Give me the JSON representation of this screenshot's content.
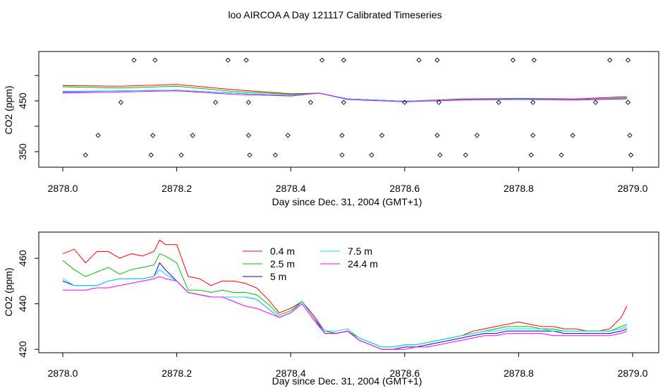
{
  "figure": {
    "title": "loo AIRCOA A  Day 121117  Calibrated Timeseries"
  },
  "chart_data": [
    {
      "type": "scatter",
      "title": "loo AIRCOA A  Day 121117  Calibrated Timeseries",
      "xlabel": "Day since Dec. 31, 2004 (GMT+1)",
      "ylabel": "CO2 (ppm)",
      "xlim": [
        2878.0,
        2879.0
      ],
      "xticks": [
        "2878.0",
        "2878.2",
        "2878.4",
        "2878.6",
        "2878.8",
        "2879.0"
      ],
      "yticks": [
        "350",
        "450"
      ],
      "ylim": [
        320,
        520
      ],
      "grid": false,
      "scatter_points": [
        {
          "x": 2878.125,
          "y": 505
        },
        {
          "x": 2878.162,
          "y": 505
        },
        {
          "x": 2878.29,
          "y": 505
        },
        {
          "x": 2878.322,
          "y": 505
        },
        {
          "x": 2878.455,
          "y": 505
        },
        {
          "x": 2878.493,
          "y": 505
        },
        {
          "x": 2878.625,
          "y": 505
        },
        {
          "x": 2878.657,
          "y": 505
        },
        {
          "x": 2878.79,
          "y": 505
        },
        {
          "x": 2878.827,
          "y": 505
        },
        {
          "x": 2878.96,
          "y": 505
        },
        {
          "x": 2878.992,
          "y": 505
        },
        {
          "x": 2878.102,
          "y": 432
        },
        {
          "x": 2878.268,
          "y": 432
        },
        {
          "x": 2878.326,
          "y": 432
        },
        {
          "x": 2878.435,
          "y": 432
        },
        {
          "x": 2878.493,
          "y": 432
        },
        {
          "x": 2878.6,
          "y": 432
        },
        {
          "x": 2878.66,
          "y": 432
        },
        {
          "x": 2878.765,
          "y": 432
        },
        {
          "x": 2878.825,
          "y": 432
        },
        {
          "x": 2878.935,
          "y": 432
        },
        {
          "x": 2878.992,
          "y": 432
        },
        {
          "x": 2878.062,
          "y": 375
        },
        {
          "x": 2878.158,
          "y": 375
        },
        {
          "x": 2878.228,
          "y": 375
        },
        {
          "x": 2878.326,
          "y": 375
        },
        {
          "x": 2878.395,
          "y": 375
        },
        {
          "x": 2878.49,
          "y": 375
        },
        {
          "x": 2878.56,
          "y": 375
        },
        {
          "x": 2878.657,
          "y": 375
        },
        {
          "x": 2878.727,
          "y": 375
        },
        {
          "x": 2878.825,
          "y": 375
        },
        {
          "x": 2878.895,
          "y": 375
        },
        {
          "x": 2878.995,
          "y": 375
        },
        {
          "x": 2878.04,
          "y": 341
        },
        {
          "x": 2878.155,
          "y": 341
        },
        {
          "x": 2878.208,
          "y": 341
        },
        {
          "x": 2878.328,
          "y": 341
        },
        {
          "x": 2878.373,
          "y": 341
        },
        {
          "x": 2878.49,
          "y": 341
        },
        {
          "x": 2878.542,
          "y": 341
        },
        {
          "x": 2878.662,
          "y": 341
        },
        {
          "x": 2878.707,
          "y": 341
        },
        {
          "x": 2878.822,
          "y": 341
        },
        {
          "x": 2878.875,
          "y": 341
        },
        {
          "x": 2878.997,
          "y": 341
        }
      ],
      "series": [
        {
          "color": "#ff0000",
          "x": [
            2878.0,
            2878.1,
            2878.2,
            2878.3,
            2878.4,
            2878.45,
            2878.5,
            2878.6,
            2878.7,
            2878.8,
            2878.9,
            2878.99
          ],
          "values": [
            461,
            460,
            463,
            454,
            447,
            448,
            438,
            434,
            438,
            439,
            438,
            442
          ]
        },
        {
          "color": "#00c000",
          "x": [
            2878.0,
            2878.1,
            2878.2,
            2878.3,
            2878.4,
            2878.45,
            2878.5,
            2878.6,
            2878.7,
            2878.8,
            2878.9,
            2878.99
          ],
          "values": [
            459,
            457,
            460,
            451,
            446,
            448,
            438,
            434,
            437,
            439,
            437,
            440
          ]
        },
        {
          "color": "#0000ff",
          "x": [
            2878.0,
            2878.1,
            2878.2,
            2878.3,
            2878.4,
            2878.45,
            2878.5,
            2878.6,
            2878.7,
            2878.8,
            2878.9,
            2878.99
          ],
          "values": [
            450,
            452,
            453,
            448,
            444,
            448,
            438,
            434,
            437,
            438,
            437,
            439
          ]
        },
        {
          "color": "#00e5e5",
          "x": [
            2878.0,
            2878.1,
            2878.2,
            2878.3,
            2878.4,
            2878.45,
            2878.5,
            2878.6,
            2878.7,
            2878.8,
            2878.9,
            2878.99
          ],
          "values": [
            451,
            452,
            453,
            448,
            444,
            448,
            438,
            434,
            437,
            438,
            437,
            439
          ]
        },
        {
          "color": "#ff00ff",
          "x": [
            2878.0,
            2878.1,
            2878.2,
            2878.3,
            2878.4,
            2878.45,
            2878.5,
            2878.6,
            2878.7,
            2878.8,
            2878.9,
            2878.99
          ],
          "values": [
            448,
            450,
            452,
            446,
            443,
            448,
            437,
            433,
            436,
            437,
            436,
            438
          ]
        }
      ]
    },
    {
      "type": "line",
      "title": "",
      "xlabel": "Day since Dec. 31, 2004 (GMT+1)",
      "ylabel": "CO2 (ppm)",
      "xlim": [
        2878.0,
        2879.0
      ],
      "ylim": [
        418.5,
        471.5
      ],
      "xticks": [
        "2878.0",
        "2878.2",
        "2878.4",
        "2878.6",
        "2878.8",
        "2879.0"
      ],
      "yticks": [
        "420",
        "440",
        "460"
      ],
      "grid": false,
      "legend_position": "top-center",
      "x": [
        2878.0,
        2878.02,
        2878.04,
        2878.06,
        2878.08,
        2878.1,
        2878.12,
        2878.14,
        2878.16,
        2878.17,
        2878.18,
        2878.2,
        2878.22,
        2878.24,
        2878.26,
        2878.28,
        2878.3,
        2878.32,
        2878.34,
        2878.36,
        2878.38,
        2878.4,
        2878.42,
        2878.44,
        2878.46,
        2878.48,
        2878.5,
        2878.52,
        2878.54,
        2878.56,
        2878.58,
        2878.6,
        2878.62,
        2878.64,
        2878.66,
        2878.68,
        2878.7,
        2878.72,
        2878.74,
        2878.76,
        2878.78,
        2878.8,
        2878.82,
        2878.84,
        2878.86,
        2878.88,
        2878.9,
        2878.92,
        2878.94,
        2878.96,
        2878.98,
        2878.99
      ],
      "series": [
        {
          "name": "0.4 m",
          "color": "#ff0000",
          "values": [
            462,
            464,
            458,
            463,
            463,
            460,
            462,
            461,
            463,
            468,
            466,
            466,
            452,
            451,
            448,
            450,
            450,
            449,
            447,
            442,
            436,
            438,
            441,
            435,
            428,
            427,
            428,
            425,
            423,
            421,
            421,
            422,
            422,
            423,
            424,
            425,
            426,
            428,
            429,
            430,
            431,
            432,
            431,
            430,
            430,
            429,
            429,
            428,
            428,
            429,
            434,
            439
          ]
        },
        {
          "name": "2.5 m",
          "color": "#00c000",
          "values": [
            459,
            455,
            452,
            454,
            456,
            453,
            455,
            456,
            457,
            462,
            461,
            458,
            446,
            446,
            445,
            446,
            445,
            445,
            444,
            440,
            435,
            437,
            441,
            434,
            428,
            427,
            428,
            425,
            423,
            421,
            421,
            422,
            422,
            423,
            424,
            425,
            426,
            427,
            428,
            429,
            430,
            430,
            430,
            429,
            429,
            428,
            428,
            428,
            428,
            428,
            430,
            431
          ]
        },
        {
          "name": "5 m",
          "color": "#0000ff",
          "values": [
            450,
            448,
            448,
            448,
            450,
            451,
            451,
            451,
            452,
            458,
            455,
            450,
            445,
            444,
            443,
            443,
            443,
            443,
            442,
            438,
            434,
            436,
            441,
            434,
            427,
            427,
            428,
            424,
            422,
            420,
            420,
            421,
            421,
            422,
            423,
            424,
            425,
            426,
            427,
            427,
            428,
            428,
            428,
            428,
            428,
            427,
            427,
            427,
            427,
            427,
            428,
            429
          ]
        },
        {
          "name": "7.5 m",
          "color": "#00e5e5",
          "values": [
            451,
            448,
            448,
            448,
            450,
            451,
            451,
            451,
            452,
            455,
            453,
            450,
            445,
            444,
            443,
            443,
            443,
            443,
            442,
            438,
            434,
            436,
            441,
            434,
            428,
            428,
            429,
            425,
            423,
            421,
            421,
            422,
            422,
            423,
            424,
            425,
            426,
            427,
            428,
            428,
            429,
            429,
            429,
            429,
            428,
            428,
            428,
            428,
            428,
            428,
            429,
            430
          ]
        },
        {
          "name": "24.4 m",
          "color": "#ff00ff",
          "values": [
            446,
            446,
            446,
            447,
            447,
            448,
            449,
            450,
            451,
            452,
            451,
            450,
            445,
            444,
            443,
            443,
            441,
            439,
            438,
            436,
            434,
            436,
            440,
            433,
            427,
            427,
            428,
            424,
            422,
            420,
            420,
            420,
            421,
            421,
            422,
            423,
            424,
            425,
            426,
            426,
            427,
            427,
            427,
            427,
            426,
            426,
            426,
            426,
            426,
            426,
            427,
            428
          ]
        }
      ]
    }
  ]
}
